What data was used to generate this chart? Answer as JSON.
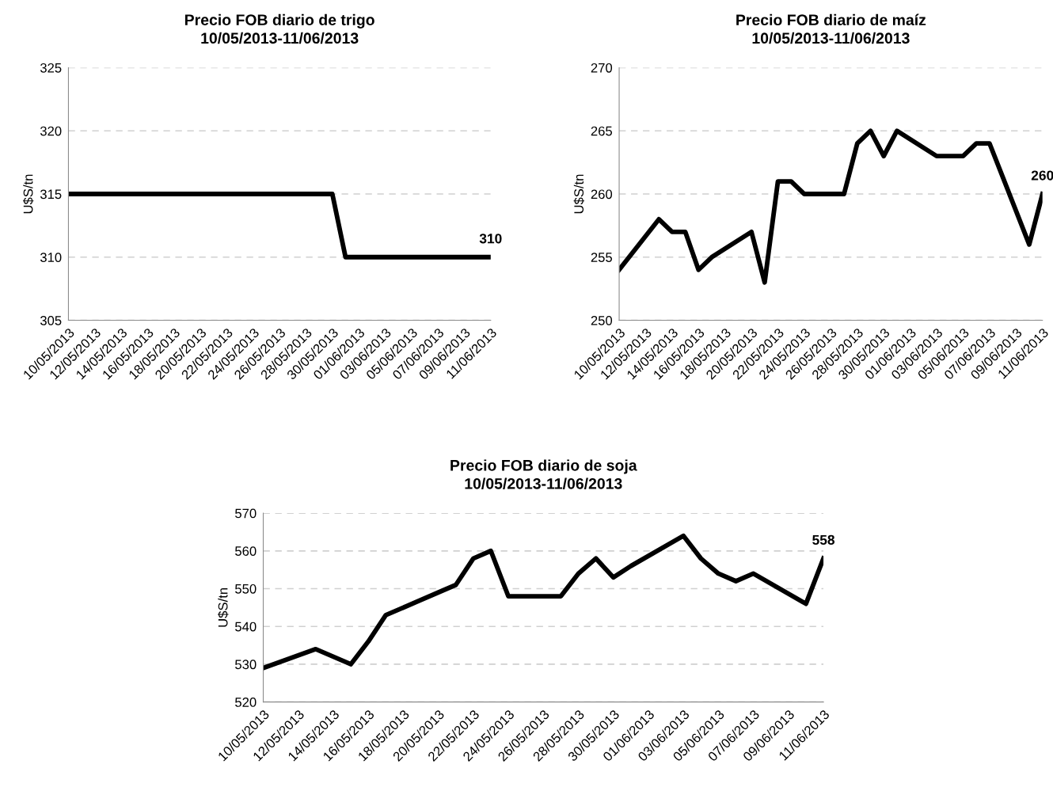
{
  "chart_data": [
    {
      "type": "line",
      "title": "Precio FOB diario de trigo",
      "subtitle": "10/05/2013-11/06/2013",
      "ylabel": "U$S/tn",
      "x": [
        "2013-05-10",
        "2013-05-13",
        "2013-05-14",
        "2013-05-15",
        "2013-05-16",
        "2013-05-17",
        "2013-05-20",
        "2013-05-21",
        "2013-05-22",
        "2013-05-23",
        "2013-05-24",
        "2013-05-27",
        "2013-05-28",
        "2013-05-29",
        "2013-05-30",
        "2013-05-31",
        "2013-06-03",
        "2013-06-04",
        "2013-06-05",
        "2013-06-06",
        "2013-06-07",
        "2013-06-10",
        "2013-06-11"
      ],
      "series": [
        {
          "color": "#000000",
          "values": [
            315,
            315,
            315,
            315,
            315,
            315,
            315,
            315,
            315,
            315,
            315,
            315,
            315,
            315,
            315,
            310,
            310,
            310,
            310,
            310,
            310,
            310,
            310
          ],
          "value_labels": [
            null,
            null,
            null,
            null,
            null,
            null,
            null,
            null,
            null,
            null,
            null,
            null,
            null,
            null,
            null,
            null,
            null,
            null,
            null,
            null,
            null,
            null,
            "310"
          ]
        }
      ],
      "xlim": [
        "2013-05-10",
        "2013-06-11"
      ],
      "xticks": [
        {
          "value": "2013-05-10",
          "label": "10/05/2013"
        },
        {
          "value": "2013-05-12",
          "label": "12/05/2013"
        },
        {
          "value": "2013-05-14",
          "label": "14/05/2013"
        },
        {
          "value": "2013-05-16",
          "label": "16/05/2013"
        },
        {
          "value": "2013-05-18",
          "label": "18/05/2013"
        },
        {
          "value": "2013-05-20",
          "label": "20/05/2013"
        },
        {
          "value": "2013-05-22",
          "label": "22/05/2013"
        },
        {
          "value": "2013-05-24",
          "label": "24/05/2013"
        },
        {
          "value": "2013-05-26",
          "label": "26/05/2013"
        },
        {
          "value": "2013-05-28",
          "label": "28/05/2013"
        },
        {
          "value": "2013-05-30",
          "label": "30/05/2013"
        },
        {
          "value": "2013-06-01",
          "label": "01/06/2013"
        },
        {
          "value": "2013-06-03",
          "label": "03/06/2013"
        },
        {
          "value": "2013-06-05",
          "label": "05/06/2013"
        },
        {
          "value": "2013-06-07",
          "label": "07/06/2013"
        },
        {
          "value": "2013-06-09",
          "label": "09/06/2013"
        },
        {
          "value": "2013-06-11",
          "label": "11/06/2013"
        }
      ],
      "ylim": [
        305,
        325
      ],
      "yticks": [
        305,
        310,
        315,
        320,
        325
      ],
      "grid": "y",
      "legend": false,
      "marker": "none",
      "line_style": "solid"
    },
    {
      "type": "line",
      "title": "Precio FOB diario de maíz",
      "subtitle": "10/05/2013-11/06/2013",
      "ylabel": "U$S/tn",
      "x": [
        "2013-05-10",
        "2013-05-13",
        "2013-05-14",
        "2013-05-15",
        "2013-05-16",
        "2013-05-17",
        "2013-05-20",
        "2013-05-21",
        "2013-05-22",
        "2013-05-23",
        "2013-05-24",
        "2013-05-27",
        "2013-05-28",
        "2013-05-29",
        "2013-05-30",
        "2013-05-31",
        "2013-06-03",
        "2013-06-04",
        "2013-06-05",
        "2013-06-06",
        "2013-06-07",
        "2013-06-10",
        "2013-06-11"
      ],
      "series": [
        {
          "color": "#000000",
          "values": [
            254,
            258,
            257,
            257,
            254,
            255,
            257,
            253,
            261,
            261,
            260,
            260,
            264,
            265,
            263,
            265,
            263,
            263,
            263,
            264,
            264,
            256,
            260
          ],
          "value_labels": [
            null,
            null,
            null,
            null,
            null,
            null,
            null,
            null,
            null,
            null,
            null,
            null,
            null,
            null,
            null,
            null,
            null,
            null,
            null,
            null,
            null,
            null,
            "260"
          ]
        }
      ],
      "xlim": [
        "2013-05-10",
        "2013-06-11"
      ],
      "xticks": [
        {
          "value": "2013-05-10",
          "label": "10/05/2013"
        },
        {
          "value": "2013-05-12",
          "label": "12/05/2013"
        },
        {
          "value": "2013-05-14",
          "label": "14/05/2013"
        },
        {
          "value": "2013-05-16",
          "label": "16/05/2013"
        },
        {
          "value": "2013-05-18",
          "label": "18/05/2013"
        },
        {
          "value": "2013-05-20",
          "label": "20/05/2013"
        },
        {
          "value": "2013-05-22",
          "label": "22/05/2013"
        },
        {
          "value": "2013-05-24",
          "label": "24/05/2013"
        },
        {
          "value": "2013-05-26",
          "label": "26/05/2013"
        },
        {
          "value": "2013-05-28",
          "label": "28/05/2013"
        },
        {
          "value": "2013-05-30",
          "label": "30/05/2013"
        },
        {
          "value": "2013-06-01",
          "label": "01/06/2013"
        },
        {
          "value": "2013-06-03",
          "label": "03/06/2013"
        },
        {
          "value": "2013-06-05",
          "label": "05/06/2013"
        },
        {
          "value": "2013-06-07",
          "label": "07/06/2013"
        },
        {
          "value": "2013-06-09",
          "label": "09/06/2013"
        },
        {
          "value": "2013-06-11",
          "label": "11/06/2013"
        }
      ],
      "ylim": [
        250,
        270
      ],
      "yticks": [
        250,
        255,
        260,
        265,
        270
      ],
      "grid": "y",
      "legend": false,
      "marker": "none",
      "line_style": "solid"
    },
    {
      "type": "line",
      "title": "Precio FOB diario de soja",
      "subtitle": "10/05/2013-11/06/2013",
      "ylabel": "U$S/tn",
      "x": [
        "2013-05-10",
        "2013-05-13",
        "2013-05-14",
        "2013-05-15",
        "2013-05-16",
        "2013-05-17",
        "2013-05-20",
        "2013-05-21",
        "2013-05-22",
        "2013-05-23",
        "2013-05-24",
        "2013-05-27",
        "2013-05-28",
        "2013-05-29",
        "2013-05-30",
        "2013-05-31",
        "2013-06-03",
        "2013-06-04",
        "2013-06-05",
        "2013-06-06",
        "2013-06-07",
        "2013-06-10",
        "2013-06-11"
      ],
      "series": [
        {
          "color": "#000000",
          "values": [
            529,
            534,
            532,
            530,
            536,
            543,
            549,
            551,
            558,
            560,
            548,
            548,
            554,
            558,
            553,
            556,
            564,
            558,
            554,
            552,
            554,
            546,
            558
          ],
          "value_labels": [
            null,
            null,
            null,
            null,
            null,
            null,
            null,
            null,
            null,
            null,
            null,
            null,
            null,
            null,
            null,
            null,
            null,
            null,
            null,
            null,
            null,
            null,
            "558"
          ]
        }
      ],
      "xlim": [
        "2013-05-10",
        "2013-06-11"
      ],
      "xticks": [
        {
          "value": "2013-05-10",
          "label": "10/05/2013"
        },
        {
          "value": "2013-05-12",
          "label": "12/05/2013"
        },
        {
          "value": "2013-05-14",
          "label": "14/05/2013"
        },
        {
          "value": "2013-05-16",
          "label": "16/05/2013"
        },
        {
          "value": "2013-05-18",
          "label": "18/05/2013"
        },
        {
          "value": "2013-05-20",
          "label": "20/05/2013"
        },
        {
          "value": "2013-05-22",
          "label": "22/05/2013"
        },
        {
          "value": "2013-05-24",
          "label": "24/05/2013"
        },
        {
          "value": "2013-05-26",
          "label": "26/05/2013"
        },
        {
          "value": "2013-05-28",
          "label": "28/05/2013"
        },
        {
          "value": "2013-05-30",
          "label": "30/05/2013"
        },
        {
          "value": "2013-06-01",
          "label": "01/06/2013"
        },
        {
          "value": "2013-06-03",
          "label": "03/06/2013"
        },
        {
          "value": "2013-06-05",
          "label": "05/06/2013"
        },
        {
          "value": "2013-06-07",
          "label": "07/06/2013"
        },
        {
          "value": "2013-06-09",
          "label": "09/06/2013"
        },
        {
          "value": "2013-06-11",
          "label": "11/06/2013"
        }
      ],
      "ylim": [
        520,
        570
      ],
      "yticks": [
        520,
        530,
        540,
        550,
        560,
        570
      ],
      "grid": "y",
      "legend": false,
      "marker": "none",
      "line_style": "solid"
    }
  ]
}
